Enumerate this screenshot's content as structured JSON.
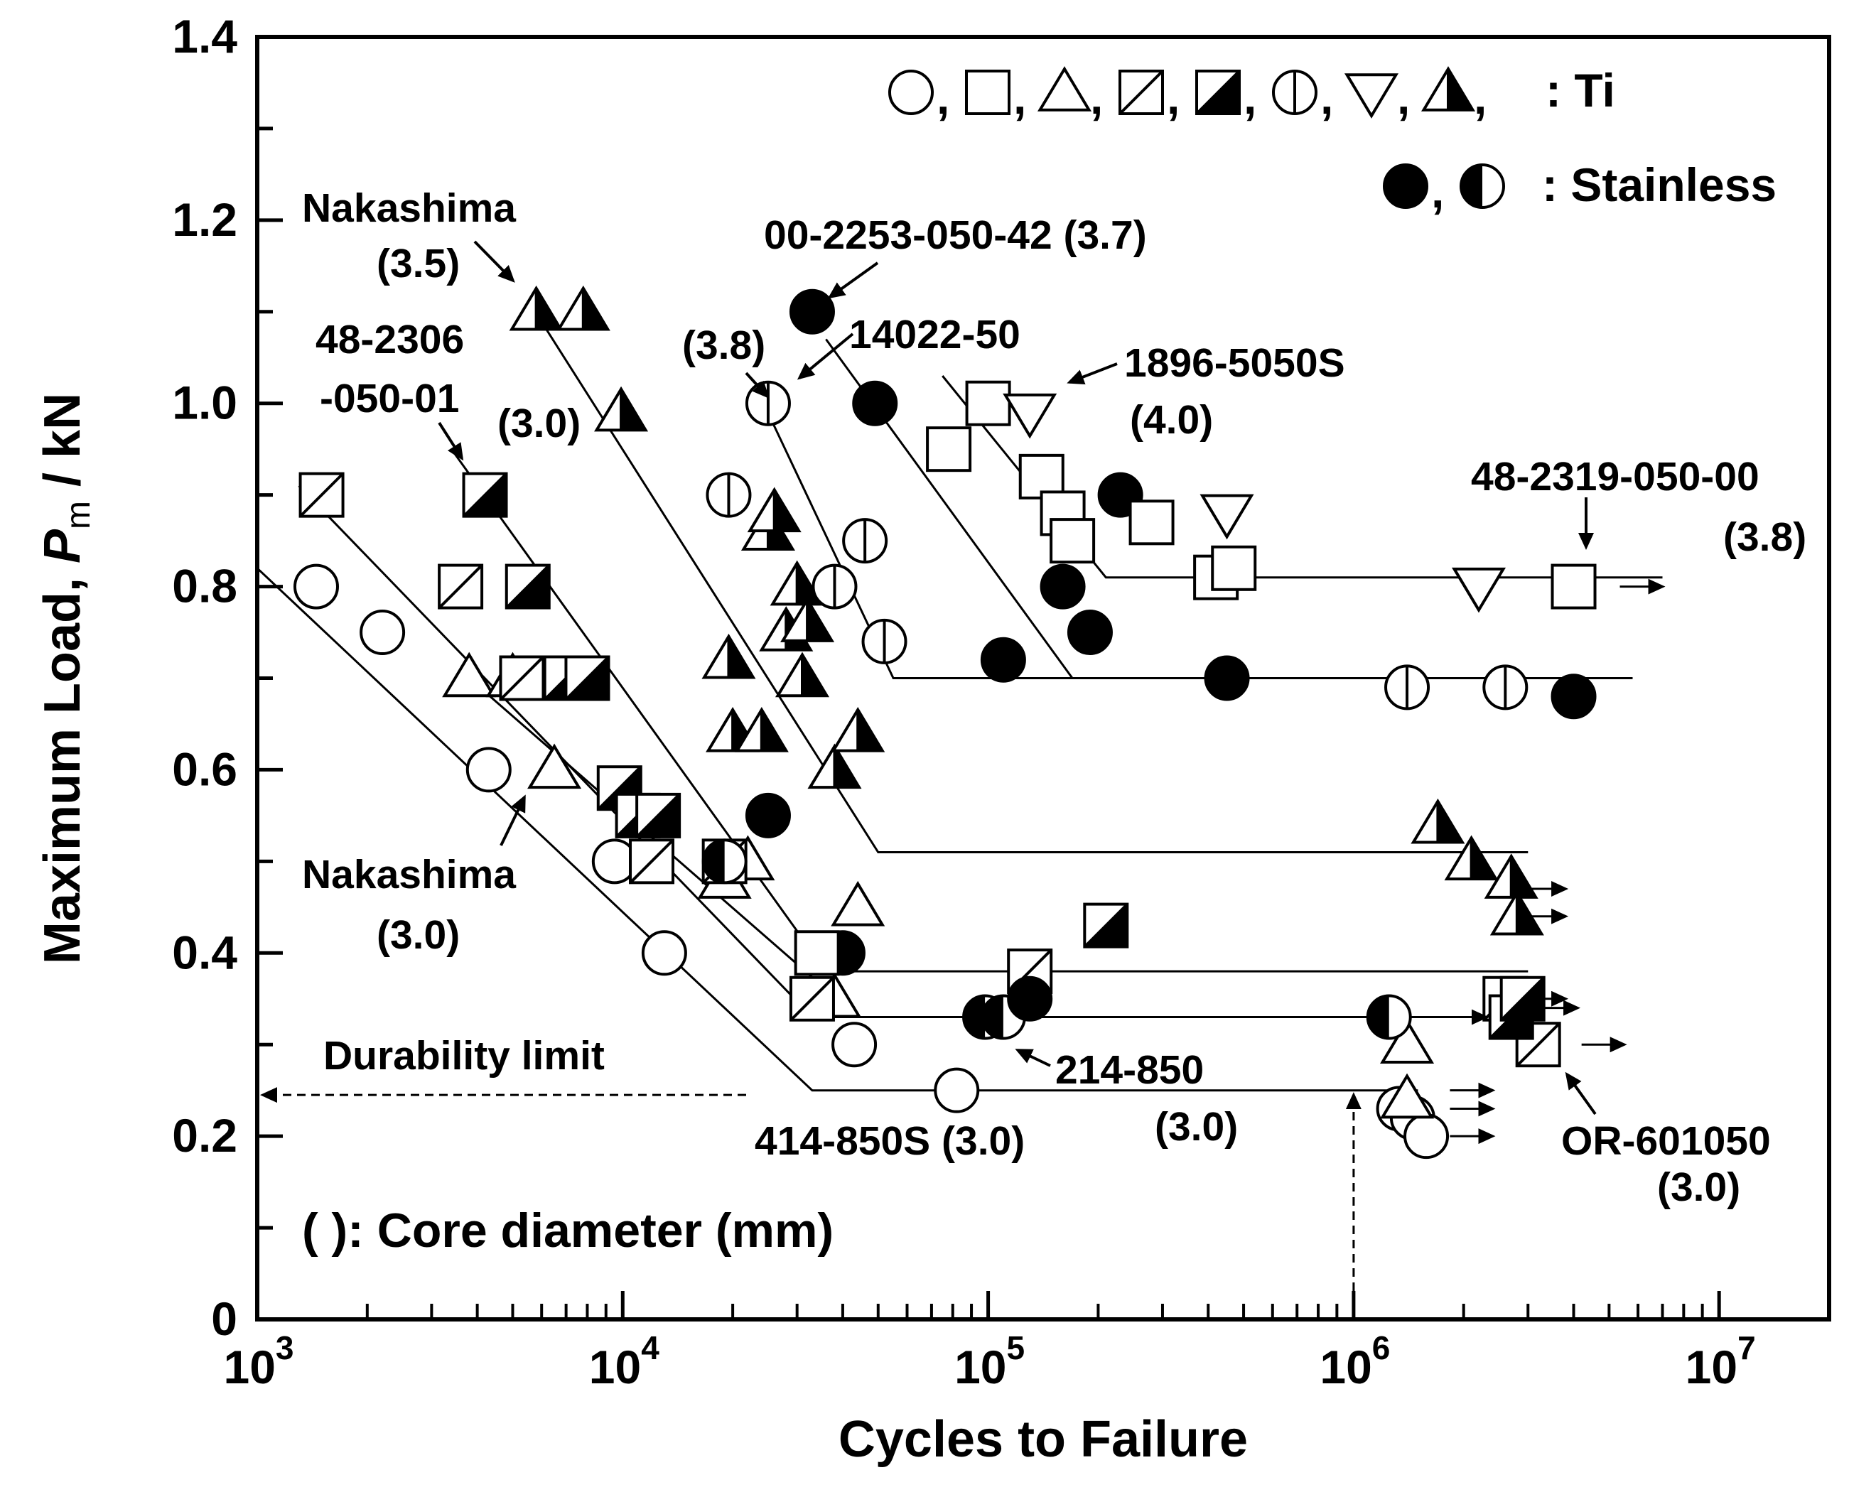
{
  "chart_data": {
    "type": "scatter",
    "title": "",
    "xlabel": "Cycles to Failure",
    "ylabel_prefix": "Maximum Load, ",
    "ylabel_symbol": "P",
    "ylabel_subscript": "m",
    "ylabel_suffix": " / kN",
    "xscale": "log",
    "xlim": [
      1000,
      20000000
    ],
    "ylim": [
      0,
      1.4
    ],
    "yticks": [
      0,
      0.2,
      0.4,
      0.6,
      0.8,
      1.0,
      1.2,
      1.4
    ],
    "ytick_labels": [
      "0",
      "0.2",
      "0.4",
      "0.6",
      "0.8",
      "1.0",
      "1.2",
      "1.4"
    ],
    "xticks": [
      {
        "value": 1000,
        "base": "10",
        "exp": "3"
      },
      {
        "value": 10000,
        "base": "10",
        "exp": "4"
      },
      {
        "value": 100000,
        "base": "10",
        "exp": "5"
      },
      {
        "value": 1000000,
        "base": "10",
        "exp": "6"
      },
      {
        "value": 10000000,
        "base": "10",
        "exp": "7"
      }
    ],
    "legend": {
      "ti_label": ": Ti",
      "stainless_label": ": Stainless",
      "separator": ",",
      "ti_markers": [
        "circle",
        "square",
        "triangle",
        "square-slash",
        "square-half",
        "circle-vline",
        "triangle-down",
        "triangle-half"
      ],
      "stainless_markers": [
        "circle-filled",
        "circle-half"
      ]
    },
    "series": [
      {
        "name": "414-850S (3.0)",
        "material": "Ti",
        "marker": "circle",
        "points": [
          [
            1450,
            0.8
          ],
          [
            2200,
            0.75
          ],
          [
            4300,
            0.6
          ],
          [
            9500,
            0.5
          ],
          [
            13000,
            0.4
          ],
          [
            43000,
            0.3
          ],
          [
            82000,
            0.25
          ],
          [
            1330000,
            0.23
          ],
          [
            1450000,
            0.22
          ],
          [
            1580000,
            0.2
          ]
        ],
        "fit": [
          [
            1000,
            0.82
          ],
          [
            33000,
            0.25
          ],
          [
            1500000,
            0.25
          ]
        ]
      },
      {
        "name": "Nakashima (3.0)",
        "material": "Ti",
        "marker": "triangle",
        "points": [
          [
            3800,
            0.7
          ],
          [
            5000,
            0.7
          ],
          [
            6500,
            0.6
          ],
          [
            19000,
            0.48
          ],
          [
            22000,
            0.5
          ],
          [
            38000,
            0.35
          ],
          [
            44000,
            0.45
          ],
          [
            1400000,
            0.24
          ],
          [
            1400000,
            0.3
          ]
        ],
        "fit": [
          [
            3800,
            0.7
          ],
          [
            44000,
            0.33
          ],
          [
            1400000,
            0.33
          ]
        ]
      },
      {
        "name": "OR-601050 (3.0)",
        "material": "Ti",
        "marker": "square-slash",
        "points": [
          [
            1500,
            0.9
          ],
          [
            3600,
            0.8
          ],
          [
            5300,
            0.7
          ],
          [
            12000,
            0.5
          ],
          [
            19000,
            0.5
          ],
          [
            33000,
            0.35
          ],
          [
            130000,
            0.38
          ],
          [
            2600000,
            0.35
          ],
          [
            3200000,
            0.3
          ]
        ],
        "fit": [
          [
            1300,
            0.91
          ],
          [
            33000,
            0.33
          ],
          [
            2600000,
            0.33
          ]
        ]
      },
      {
        "name": "48-2306-050-01 (3.0)",
        "material": "Ti",
        "marker": "square-half",
        "points": [
          [
            4200,
            0.9
          ],
          [
            5500,
            0.8
          ],
          [
            7000,
            0.7
          ],
          [
            8000,
            0.7
          ],
          [
            9800,
            0.58
          ],
          [
            11000,
            0.55
          ],
          [
            12500,
            0.55
          ],
          [
            210000,
            0.43
          ],
          [
            2700000,
            0.33
          ],
          [
            2900000,
            0.35
          ]
        ],
        "fit": [
          [
            3400,
            0.95
          ],
          [
            36000,
            0.38
          ],
          [
            3000000,
            0.38
          ]
        ]
      },
      {
        "name": "214-850 (3.0)",
        "material": "Stainless",
        "marker": "circle-half",
        "points": [
          [
            19000,
            0.5
          ],
          [
            98000,
            0.33
          ],
          [
            110000,
            0.33
          ],
          [
            1250000,
            0.33
          ]
        ],
        "fit": []
      },
      {
        "name": "Nakashima (3.5)",
        "material": "Ti",
        "marker": "triangle-half",
        "points": [
          [
            5800,
            1.1
          ],
          [
            7800,
            1.1
          ],
          [
            9900,
            0.99
          ],
          [
            19500,
            0.72
          ],
          [
            20000,
            0.64
          ],
          [
            24000,
            0.64
          ],
          [
            25000,
            0.86
          ],
          [
            26000,
            0.88
          ],
          [
            28000,
            0.75
          ],
          [
            30000,
            0.8
          ],
          [
            31000,
            0.7
          ],
          [
            32000,
            0.76
          ],
          [
            38000,
            0.6
          ],
          [
            44000,
            0.64
          ],
          [
            1700000,
            0.54
          ],
          [
            2100000,
            0.5
          ],
          [
            2700000,
            0.48
          ],
          [
            2800000,
            0.44
          ]
        ],
        "fit": [
          [
            6200,
            1.08
          ],
          [
            50000,
            0.51
          ],
          [
            3000000,
            0.51
          ]
        ]
      },
      {
        "name": "14022-50 (3.8)",
        "material": "Ti",
        "marker": "circle-vline",
        "points": [
          [
            19500,
            0.9
          ],
          [
            25000,
            1.0
          ],
          [
            38000,
            0.8
          ],
          [
            46000,
            0.85
          ],
          [
            52000,
            0.74
          ],
          [
            1400000,
            0.69
          ],
          [
            2600000,
            0.69
          ]
        ],
        "fit": [
          [
            23000,
            1.02
          ],
          [
            55000,
            0.7
          ],
          [
            5800000,
            0.7
          ]
        ]
      },
      {
        "name": "00-2253-050-42 (3.7)",
        "material": "Stainless",
        "marker": "circle-filled",
        "points": [
          [
            25000,
            0.55
          ],
          [
            40000,
            0.4
          ],
          [
            33000,
            1.1
          ],
          [
            49000,
            1.0
          ],
          [
            110000,
            0.72
          ],
          [
            130000,
            0.35
          ],
          [
            160000,
            0.8
          ],
          [
            190000,
            0.75
          ],
          [
            230000,
            0.9
          ],
          [
            450000,
            0.7
          ],
          [
            4000000,
            0.68
          ]
        ],
        "fit": [
          [
            36000,
            1.07
          ],
          [
            170000,
            0.7
          ],
          [
            5800000,
            0.7
          ]
        ]
      },
      {
        "name": "48-2319-050-00 (3.8)",
        "material": "Ti",
        "marker": "square",
        "points": [
          [
            34000,
            0.4
          ],
          [
            78000,
            0.95
          ],
          [
            100000,
            1.0
          ],
          [
            140000,
            0.92
          ],
          [
            160000,
            0.88
          ],
          [
            170000,
            0.85
          ],
          [
            280000,
            0.87
          ],
          [
            420000,
            0.81
          ],
          [
            470000,
            0.82
          ],
          [
            4000000,
            0.8
          ]
        ],
        "fit": [
          [
            75000,
            1.03
          ],
          [
            210000,
            0.81
          ],
          [
            7000000,
            0.81
          ]
        ]
      },
      {
        "name": "1896-5050S (4.0)",
        "material": "Ti",
        "marker": "triangle-down",
        "points": [
          [
            130000,
            0.99
          ],
          [
            450000,
            0.88
          ],
          [
            2200000,
            0.8
          ]
        ],
        "fit": []
      }
    ],
    "runouts": [
      [
        2400000,
        0.25
      ],
      [
        2400000,
        0.23
      ],
      [
        2400000,
        0.2
      ],
      [
        3800000,
        0.47
      ],
      [
        3800000,
        0.44
      ],
      [
        3800000,
        0.35
      ],
      [
        5500000,
        0.3
      ],
      [
        4100000,
        0.34
      ],
      [
        7000000,
        0.8
      ],
      [
        2300000,
        0.33
      ]
    ],
    "durability_limit": {
      "label": "Durability limit",
      "x": 1000000
    },
    "annotations": [
      {
        "text": "Nakashima",
        "arrow": true
      },
      {
        "text": "(3.5)"
      },
      {
        "text": "48-2306"
      },
      {
        "text": "-050-01",
        "arrow": true
      },
      {
        "text": "(3.0)"
      },
      {
        "text": "(3.8)",
        "arrow": true
      },
      {
        "text": "00-2253-050-42 (3.7)",
        "arrow": true
      },
      {
        "text": "14022-50"
      },
      {
        "text": "1896-5050S",
        "arrow": true
      },
      {
        "text": "(4.0)"
      },
      {
        "text": "48-2319-050-00",
        "arrow": true
      },
      {
        "text": "(3.8)"
      },
      {
        "text": "Nakashima",
        "arrow": true
      },
      {
        "text": "(3.0)"
      },
      {
        "text": "214-850",
        "arrow": true
      },
      {
        "text": "(3.0)"
      },
      {
        "text": "414-850S (3.0)"
      },
      {
        "text": "OR-601050",
        "arrow": true
      },
      {
        "text": "(3.0)"
      },
      {
        "text": "(      ): Core diameter (mm)"
      }
    ]
  }
}
